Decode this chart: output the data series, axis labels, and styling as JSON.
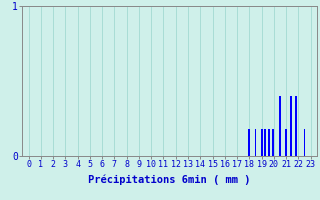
{
  "xlabel": "Précipitations 6min ( mm )",
  "bar_color": "#0000ff",
  "bg_color": "#cff0ea",
  "grid_color": "#a8ddd5",
  "axis_color": "#888888",
  "text_color": "#0000cc",
  "ylim": [
    0,
    1.0
  ],
  "xlim": [
    -0.5,
    23.5
  ],
  "yticks": [
    0,
    1
  ],
  "xlabel_fontsize": 7.5,
  "tick_fontsize": 6.0,
  "bar_positions": [
    18.0,
    18.5,
    19.0,
    19.3,
    19.6,
    19.9,
    20.5,
    21.0,
    21.4,
    21.8,
    22.5
  ],
  "bar_heights": [
    0.18,
    0.18,
    0.18,
    0.18,
    0.18,
    0.18,
    0.4,
    0.18,
    0.4,
    0.4,
    0.18
  ],
  "bar_width": 0.15
}
